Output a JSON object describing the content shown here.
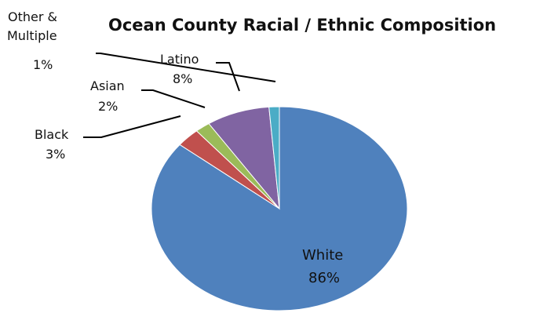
{
  "chart_data": {
    "type": "pie",
    "title": "Ocean County Racial / Ethnic Composition",
    "slices": [
      {
        "name": "White",
        "value_label": "86%",
        "value": 85.8,
        "color": "#4F81BD"
      },
      {
        "name": "Black",
        "value_label": "3%",
        "value": 3.0,
        "color": "#C0504D"
      },
      {
        "name": "Asian",
        "value_label": "2%",
        "value": 1.9,
        "color": "#9BBB59"
      },
      {
        "name": "Latino",
        "value_label": "8%",
        "value": 8.0,
        "color": "#8064A2"
      },
      {
        "name": "Other & Multiple",
        "name_lines": [
          "Other &",
          "Multiple"
        ],
        "value_label": "1%",
        "value": 1.3,
        "color": "#4BACC6"
      }
    ],
    "start_angle_deg": 0,
    "direction": "clockwise",
    "legend": "none"
  }
}
